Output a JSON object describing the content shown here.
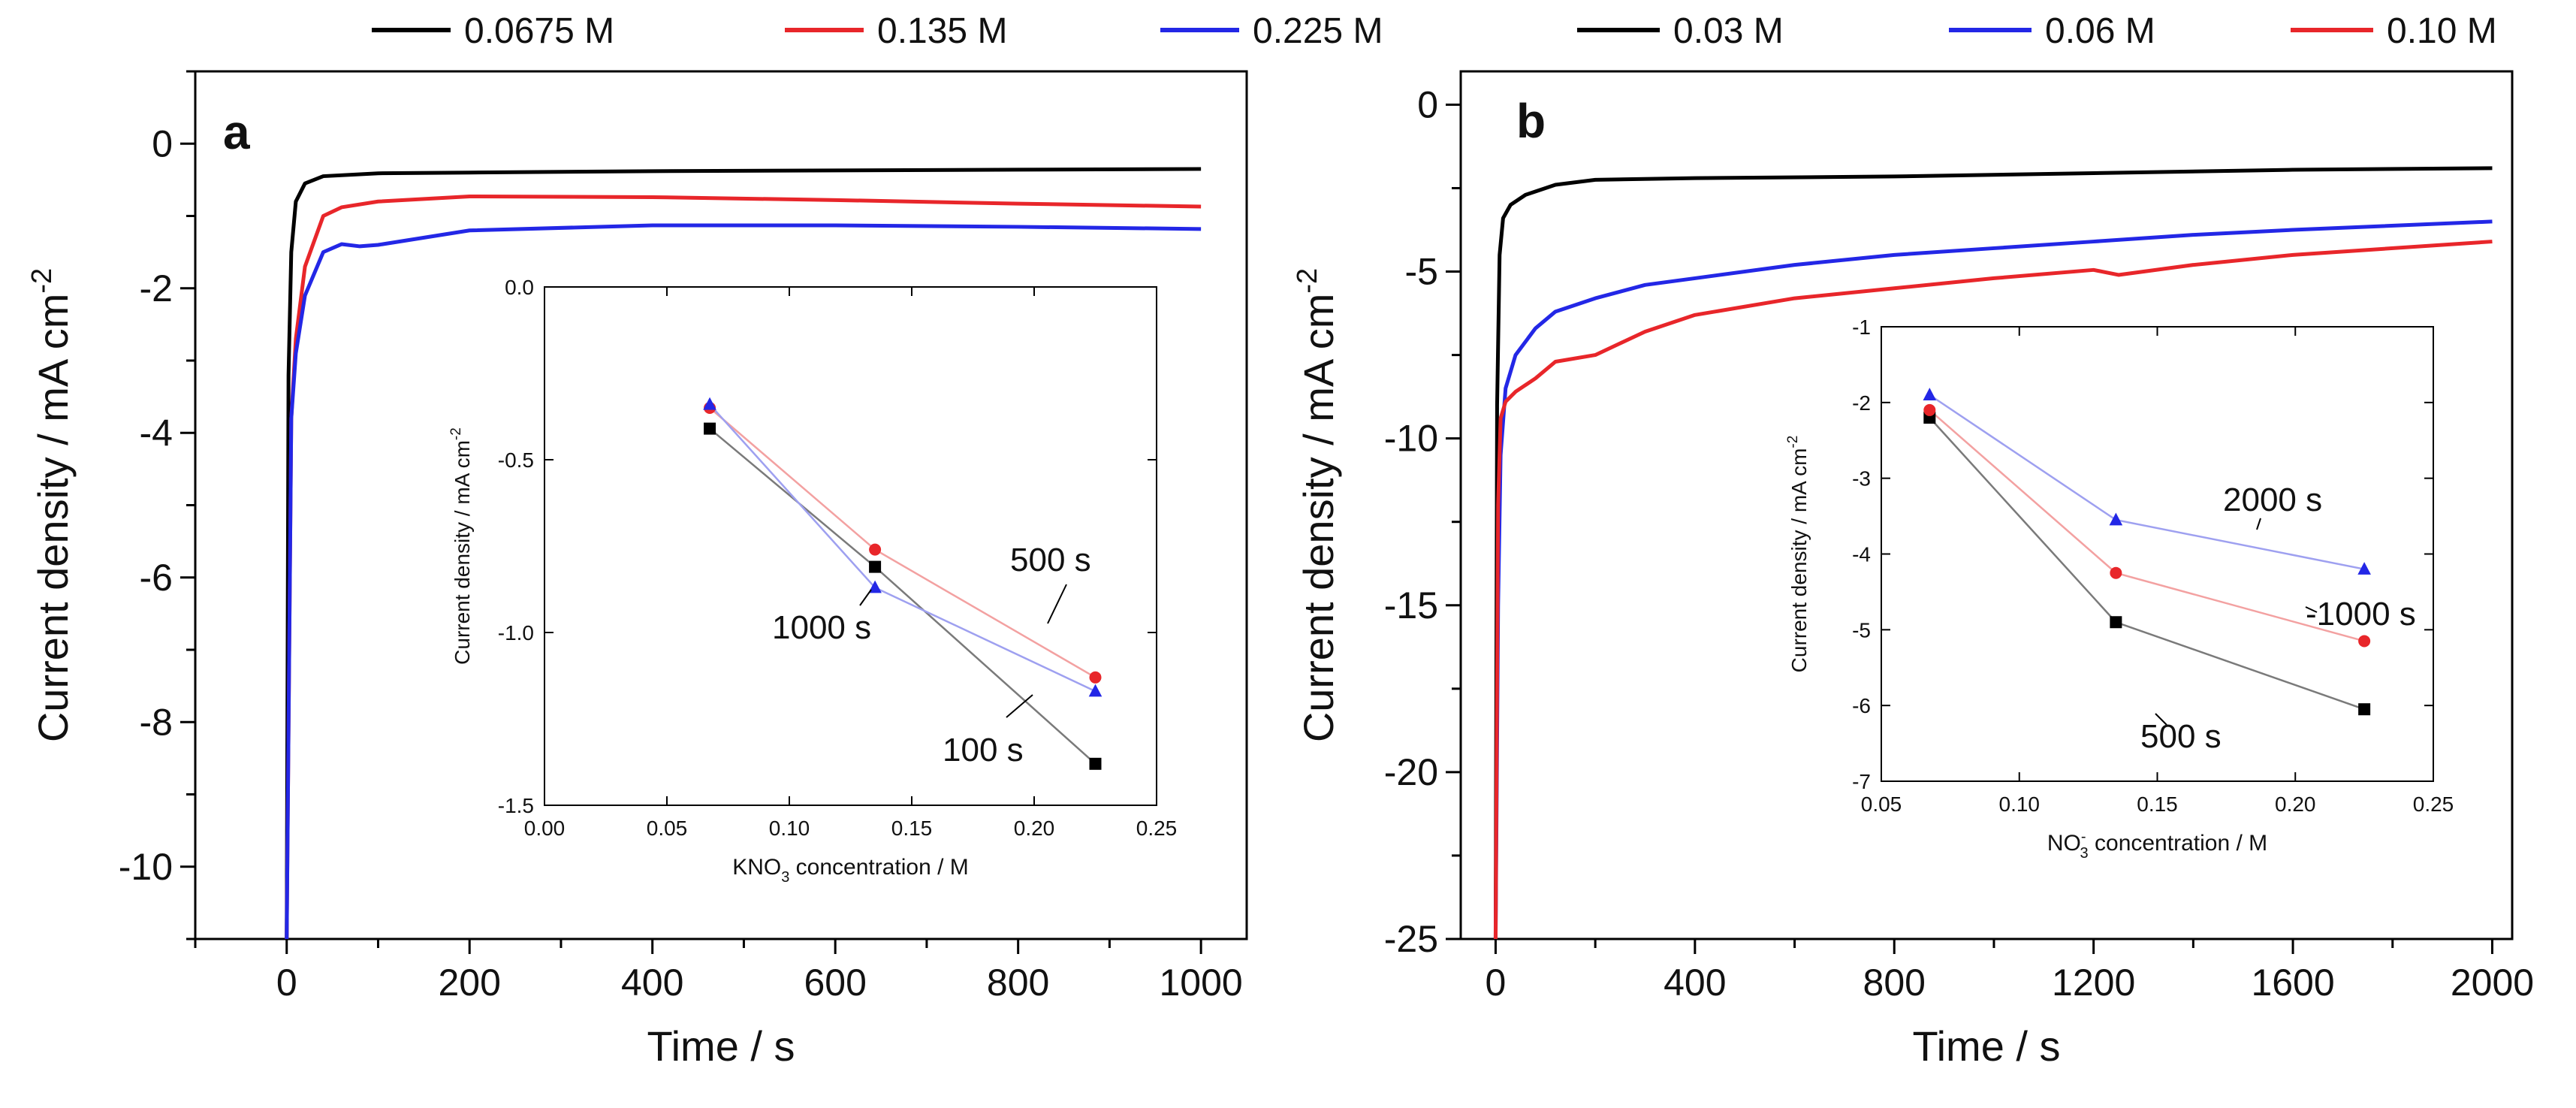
{
  "chart_data": [
    {
      "panel": "a",
      "type": "line",
      "xlabel": "Time / s",
      "ylabel": "Current density / mA cm",
      "ylabel_sup": "-2",
      "xlim": [
        -100,
        1050
      ],
      "ylim": [
        -11,
        1
      ],
      "x_ticks": [
        0,
        200,
        400,
        600,
        800,
        1000
      ],
      "x_tick_labels": [
        "0",
        "200",
        "400",
        "600",
        "800",
        "1000"
      ],
      "y_ticks": [
        0,
        -2,
        -4,
        -6,
        -8,
        -10
      ],
      "y_tick_labels": [
        "0",
        "-2",
        "-4",
        "-6",
        "-8",
        "-10"
      ],
      "legend": {
        "position": "top",
        "entries": [
          {
            "name": "0.0675 M",
            "color": "#000000"
          },
          {
            "name": "0.135 M",
            "color": "#e8262a"
          },
          {
            "name": "0.225 M",
            "color": "#2327e6"
          }
        ]
      },
      "series": [
        {
          "name": "0.0675 M",
          "color": "#000000",
          "x": [
            0,
            2,
            5,
            10,
            20,
            40,
            100,
            200,
            400,
            600,
            800,
            1000
          ],
          "y": [
            -11,
            -3.2,
            -1.5,
            -0.8,
            -0.55,
            -0.45,
            -0.41,
            -0.4,
            -0.38,
            -0.37,
            -0.36,
            -0.35
          ]
        },
        {
          "name": "0.135 M",
          "color": "#e8262a",
          "x": [
            0,
            5,
            10,
            20,
            40,
            60,
            100,
            200,
            400,
            600,
            800,
            1000
          ],
          "y": [
            -11,
            -3.8,
            -2.7,
            -1.7,
            -1.0,
            -0.88,
            -0.8,
            -0.73,
            -0.74,
            -0.78,
            -0.83,
            -0.87
          ]
        },
        {
          "name": "0.225 M",
          "color": "#2327e6",
          "x": [
            0,
            5,
            10,
            20,
            40,
            60,
            80,
            100,
            200,
            400,
            600,
            800,
            1000
          ],
          "y": [
            -11,
            -3.8,
            -2.9,
            -2.1,
            -1.5,
            -1.39,
            -1.42,
            -1.4,
            -1.2,
            -1.13,
            -1.13,
            -1.15,
            -1.18
          ]
        }
      ],
      "inset": {
        "xlabel": "KNO",
        "xlabel_sub": "3",
        "xlabel_rest": " concentration / M",
        "ylabel": "Current density / mA cm",
        "ylabel_sup": "-2",
        "xlim": [
          0,
          0.25
        ],
        "ylim": [
          -1.5,
          0
        ],
        "x_ticks": [
          0,
          0.05,
          0.1,
          0.15,
          0.2,
          0.25
        ],
        "x_tick_labels": [
          "0.00",
          "0.05",
          "0.10",
          "0.15",
          "0.20",
          "0.25"
        ],
        "y_ticks": [
          0,
          -0.5,
          -1.0,
          -1.5
        ],
        "y_tick_labels": [
          "0.0",
          "-0.5",
          "-1.0",
          "-1.5"
        ],
        "series": [
          {
            "name": "100 s",
            "marker": "square",
            "color": "#000000",
            "line": "#7a7a7a",
            "x": [
              0.0675,
              0.135,
              0.225
            ],
            "y": [
              -0.41,
              -0.81,
              -1.38
            ]
          },
          {
            "name": "500 s",
            "marker": "circle",
            "color": "#e8262a",
            "line": "#f3a1a1",
            "x": [
              0.0675,
              0.135,
              0.225
            ],
            "y": [
              -0.35,
              -0.76,
              -1.13
            ]
          },
          {
            "name": "1000 s",
            "marker": "triangle",
            "color": "#2327e6",
            "line": "#9ea0f0",
            "x": [
              0.0675,
              0.135,
              0.225
            ],
            "y": [
              -0.34,
              -0.87,
              -1.17
            ]
          }
        ],
        "annotations": [
          "500 s",
          "1000 s",
          "100 s"
        ]
      }
    },
    {
      "panel": "b",
      "type": "line",
      "xlabel": "Time / s",
      "ylabel": "Current density / mA cm",
      "ylabel_sup": "-2",
      "xlim": [
        -70,
        2040
      ],
      "ylim": [
        -25,
        1
      ],
      "x_ticks": [
        0,
        400,
        800,
        1200,
        1600,
        2000
      ],
      "x_tick_labels": [
        "0",
        "400",
        "800",
        "1200",
        "1600",
        "2000"
      ],
      "y_ticks": [
        0,
        -5,
        -10,
        -15,
        -20,
        -25
      ],
      "y_tick_labels": [
        "0",
        "-5",
        "-10",
        "-15",
        "-20",
        "-25"
      ],
      "legend": {
        "position": "top",
        "entries": [
          {
            "name": "0.03 M",
            "color": "#000000"
          },
          {
            "name": "0.06 M",
            "color": "#2327e6"
          },
          {
            "name": "0.10 M",
            "color": "#e8262a"
          }
        ]
      },
      "series": [
        {
          "name": "0.03 M",
          "color": "#000000",
          "x": [
            0,
            3,
            8,
            15,
            30,
            60,
            120,
            200,
            400,
            800,
            1200,
            1600,
            2000
          ],
          "y": [
            -25,
            -9,
            -4.5,
            -3.4,
            -3.0,
            -2.7,
            -2.4,
            -2.25,
            -2.2,
            -2.15,
            -2.05,
            -1.95,
            -1.9
          ]
        },
        {
          "name": "0.06 M",
          "color": "#2327e6",
          "x": [
            0,
            5,
            10,
            20,
            40,
            80,
            120,
            200,
            300,
            400,
            600,
            800,
            1000,
            1200,
            1400,
            1600,
            2000
          ],
          "y": [
            -25,
            -15,
            -10.5,
            -8.5,
            -7.5,
            -6.7,
            -6.2,
            -5.8,
            -5.4,
            -5.2,
            -4.8,
            -4.5,
            -4.3,
            -4.1,
            -3.9,
            -3.75,
            -3.5
          ]
        },
        {
          "name": "0.10 M",
          "color": "#e8262a",
          "x": [
            0,
            5,
            10,
            20,
            40,
            80,
            120,
            200,
            300,
            400,
            600,
            800,
            1000,
            1200,
            1250,
            1400,
            1600,
            2000
          ],
          "y": [
            -25,
            -12,
            -9.4,
            -8.9,
            -8.6,
            -8.2,
            -7.7,
            -7.5,
            -6.8,
            -6.3,
            -5.8,
            -5.5,
            -5.2,
            -4.95,
            -5.1,
            -4.8,
            -4.5,
            -4.1
          ]
        }
      ],
      "inset": {
        "xlabel": "NO",
        "xlabel_sub": "3",
        "xlabel_sup": "-",
        "xlabel_rest": " concentration / M",
        "ylabel": "Current density / mA cm",
        "ylabel_sup": "-2",
        "xlim": [
          0.05,
          0.25
        ],
        "ylim": [
          -7,
          -1
        ],
        "x_ticks": [
          0.05,
          0.1,
          0.15,
          0.2,
          0.25
        ],
        "x_tick_labels": [
          "0.05",
          "0.10",
          "0.15",
          "0.20",
          "0.25"
        ],
        "y_ticks": [
          -1,
          -2,
          -3,
          -4,
          -5,
          -6,
          -7
        ],
        "y_tick_labels": [
          "-1",
          "-2",
          "-3",
          "-4",
          "-5",
          "-6",
          "-7"
        ],
        "series": [
          {
            "name": "500 s",
            "marker": "square",
            "color": "#000000",
            "line": "#7a7a7a",
            "x": [
              0.0675,
              0.135,
              0.225
            ],
            "y": [
              -2.2,
              -4.9,
              -6.05
            ]
          },
          {
            "name": "1000 s",
            "marker": "circle",
            "color": "#e8262a",
            "line": "#f3a1a1",
            "x": [
              0.0675,
              0.135,
              0.225
            ],
            "y": [
              -2.1,
              -4.25,
              -5.15
            ]
          },
          {
            "name": "2000 s",
            "marker": "triangle",
            "color": "#2327e6",
            "line": "#9ea0f0",
            "x": [
              0.0675,
              0.135,
              0.225
            ],
            "y": [
              -1.9,
              -3.55,
              -4.2
            ]
          }
        ],
        "annotations": [
          "2000 s",
          "-1000 s",
          "500 s"
        ]
      }
    }
  ]
}
